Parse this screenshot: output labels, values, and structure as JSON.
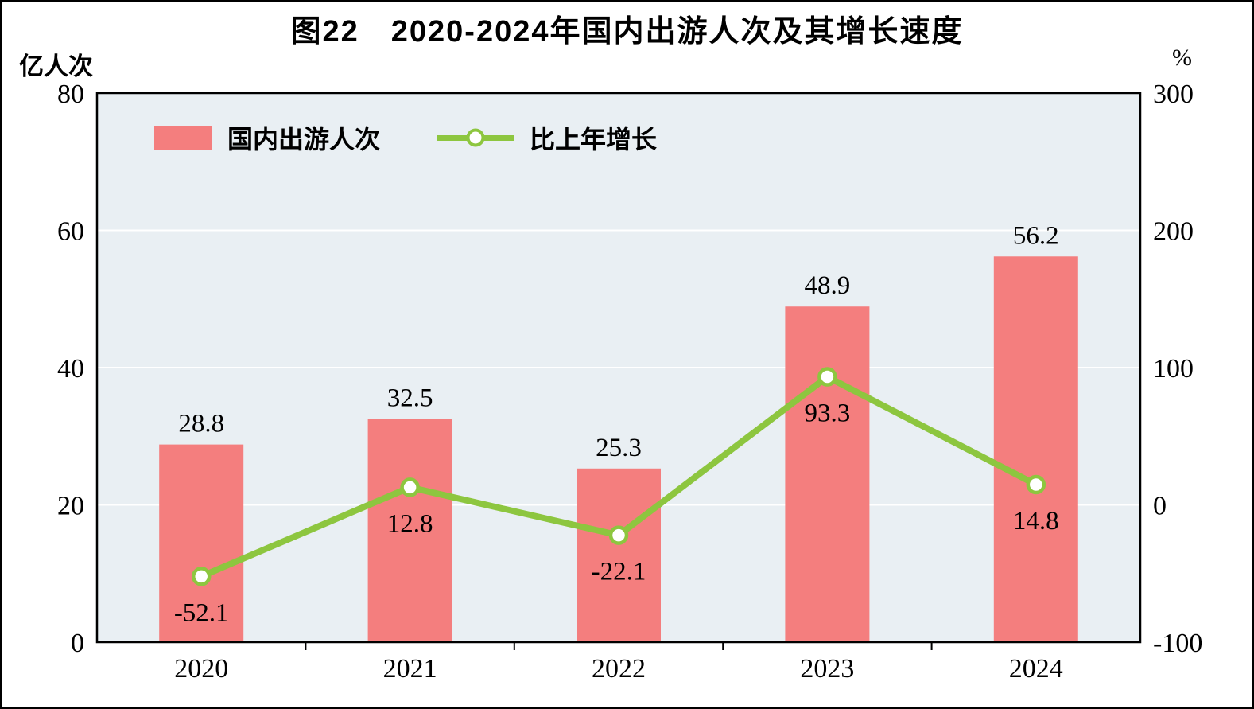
{
  "title": "图22　2020-2024年国内出游人次及其增长速度",
  "left_axis_unit": "亿人次",
  "right_axis_unit": "%",
  "chart_data": {
    "type": "bar+line",
    "categories": [
      "2020",
      "2021",
      "2022",
      "2023",
      "2024"
    ],
    "series": [
      {
        "name": "国内出游人次",
        "type": "bar",
        "axis": "left",
        "values": [
          28.8,
          32.5,
          25.3,
          48.9,
          56.2
        ],
        "labels": [
          "28.8",
          "32.5",
          "25.3",
          "48.9",
          "56.2"
        ],
        "color": "#f47e7e"
      },
      {
        "name": "比上年增长",
        "type": "line",
        "axis": "right",
        "values": [
          -52.1,
          12.8,
          -22.1,
          93.3,
          14.8
        ],
        "labels": [
          "-52.1",
          "12.8",
          "-22.1",
          "93.3",
          "14.8"
        ],
        "color": "#8dc63f"
      }
    ],
    "left_axis": {
      "min": 0,
      "max": 80,
      "ticks": [
        0,
        20,
        40,
        60,
        80
      ],
      "tick_labels": [
        "0",
        "20",
        "40",
        "60",
        "80"
      ]
    },
    "right_axis": {
      "min": -100,
      "max": 300,
      "ticks": [
        -100,
        0,
        100,
        200,
        300
      ],
      "tick_labels": [
        "-100",
        "0",
        "100",
        "200",
        "300"
      ]
    },
    "plot_background": "#e9eff3",
    "gridline_color": "#ffffff",
    "grid": true,
    "legend_position": "top-left-inside"
  }
}
